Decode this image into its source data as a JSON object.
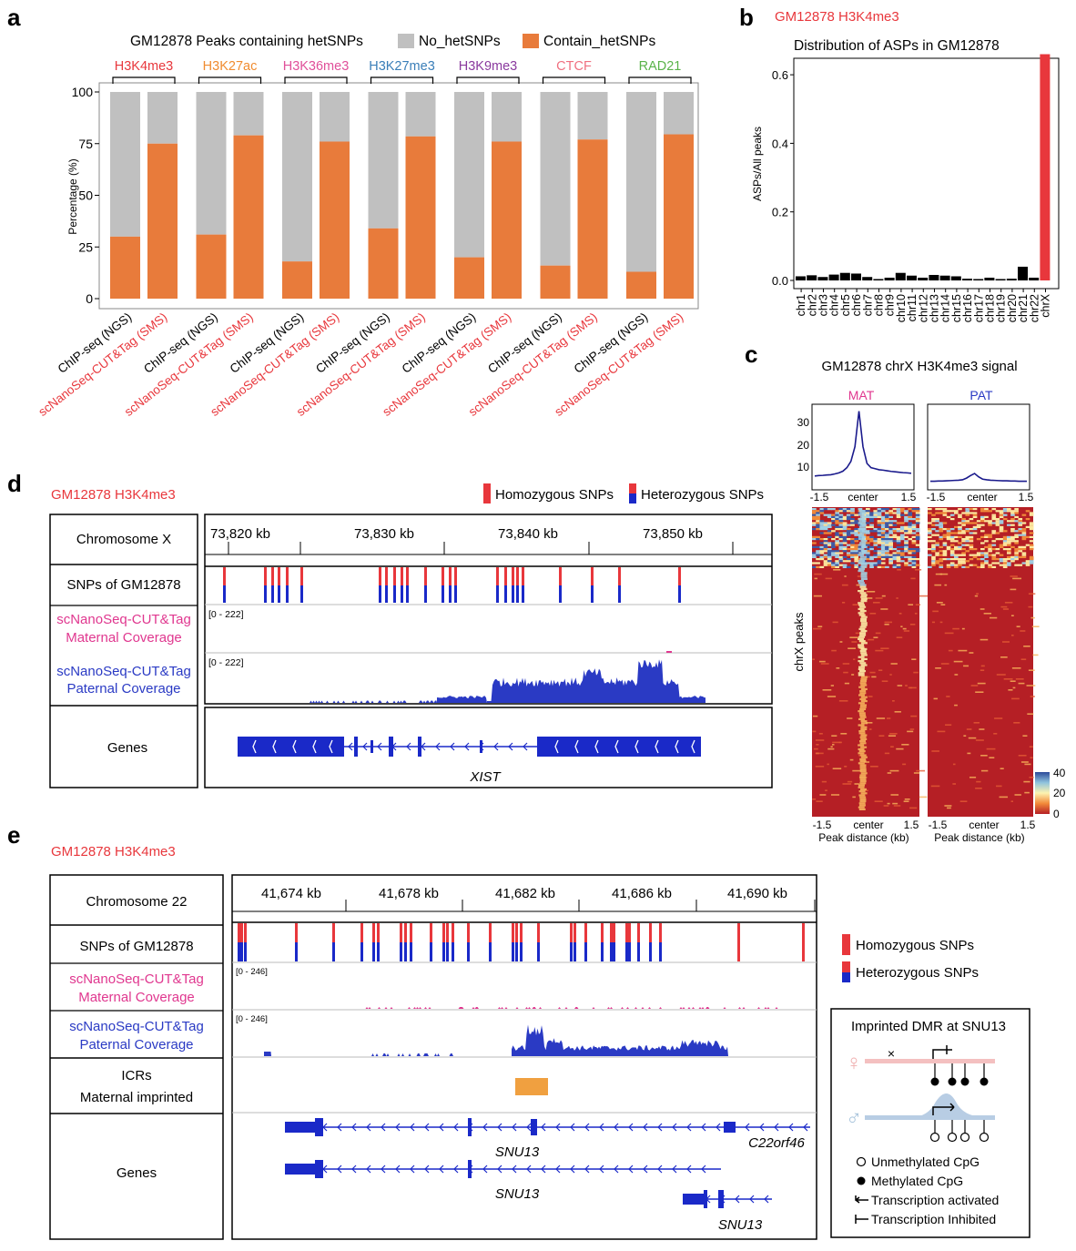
{
  "panel_labels": {
    "a": "a",
    "b": "b",
    "c": "c",
    "d": "d",
    "e": "e"
  },
  "colors": {
    "orange": "#E87B3B",
    "gray": "#C0C0C0",
    "red": "#E8373C",
    "blue": "#1A29C8",
    "navy": "#1A1A8C",
    "pink": "#E0378F",
    "track_blue": "#2A3AC4",
    "icr": "#F0A040",
    "hom": "#E8373C",
    "het_top": "#E8373C",
    "het_bot": "#1A29C8"
  },
  "chart_data": [
    {
      "type": "bar",
      "id": "a",
      "title": "GM12878 Peaks containing hetSNPs",
      "legend": [
        "No_hetSNPs",
        "Contain_hetSNPs"
      ],
      "ylabel": "Percentage (%)",
      "ylim": [
        0,
        100
      ],
      "yticks": [
        "0",
        "25",
        "50",
        "75",
        "100"
      ],
      "groups": [
        {
          "name": "H3K4me3",
          "color": "#E8373C",
          "ngs": 30,
          "sms": 75
        },
        {
          "name": "H3K27ac",
          "color": "#F08C30",
          "ngs": 31,
          "sms": 79
        },
        {
          "name": "H3K36me3",
          "color": "#E0509A",
          "ngs": 18,
          "sms": 76
        },
        {
          "name": "H3K27me3",
          "color": "#3A7EB8",
          "ngs": 34,
          "sms": 78.5
        },
        {
          "name": "H3K9me3",
          "color": "#8A3A9E",
          "ngs": 20,
          "sms": 76
        },
        {
          "name": "CTCF",
          "color": "#F07080",
          "ngs": 16,
          "sms": 77
        },
        {
          "name": "RAD21",
          "color": "#5AB34A",
          "ngs": 13,
          "sms": 79.5
        }
      ],
      "xlabels": {
        "ngs": "ChIP-seq (NGS)",
        "sms": "scNanoSeq-CUT&Tag (SMS)"
      }
    },
    {
      "type": "bar",
      "id": "b",
      "header": "GM12878 H3K4me3",
      "title": "Distribution of ASPs in GM12878",
      "ylabel": "ASPs/All peaks",
      "ylim": [
        0,
        0.68
      ],
      "yticks": [
        "0.0",
        "0.2",
        "0.4",
        "0.6"
      ],
      "categories": [
        "chr1",
        "chr2",
        "chr3",
        "chr4",
        "chr5",
        "chr6",
        "chr7",
        "chr8",
        "chr9",
        "chr10",
        "chr11",
        "chr12",
        "chr13",
        "chr14",
        "chr15",
        "chr16",
        "chr17",
        "chr18",
        "chr19",
        "chr20",
        "chr21",
        "chr22",
        "chrX"
      ],
      "values": [
        0.012,
        0.015,
        0.01,
        0.017,
        0.022,
        0.02,
        0.01,
        0.004,
        0.008,
        0.022,
        0.014,
        0.008,
        0.016,
        0.014,
        0.012,
        0.005,
        0.004,
        0.008,
        0.004,
        0.005,
        0.04,
        0.008,
        0.66
      ]
    },
    {
      "type": "heatmap",
      "id": "c",
      "title": "GM12878 chrX H3K4me3 signal",
      "columns": [
        "MAT",
        "PAT"
      ],
      "profile_yticks": [
        "10",
        "20",
        "30"
      ],
      "profile_ylim": [
        0,
        37
      ],
      "xticks": [
        "-1.5",
        "center",
        "1.5"
      ],
      "xlabel": "Peak distance (kb)",
      "ylabel": "chrX peaks",
      "profile_mat": [
        4,
        4.2,
        4.3,
        4.5,
        4.6,
        5,
        5.5,
        6.3,
        8,
        11,
        18,
        35,
        18,
        10,
        8,
        7.5,
        7,
        6.8,
        6.5,
        6.2,
        6,
        5.8,
        5.6,
        5.5,
        5.3
      ],
      "profile_pat": [
        1.5,
        1.5,
        1.6,
        1.6,
        1.7,
        1.8,
        1.9,
        2,
        2.2,
        3,
        4.2,
        5.2,
        3.6,
        2.5,
        2.2,
        2,
        1.9,
        1.8,
        1.7,
        1.7,
        1.6,
        1.6,
        1.5,
        1.5,
        1.5
      ],
      "colorbar": {
        "max": "40",
        "mid": "20",
        "min": "0"
      }
    }
  ],
  "panel_d": {
    "header": "GM12878 H3K4me3",
    "legend": {
      "hom": "Homozygous SNPs",
      "het": "Heterozygous SNPs"
    },
    "tracks": {
      "chrom": "Chromosome X",
      "snps": "SNPs of GM12878",
      "mat1": "scNanoSeq-CUT&Tag",
      "mat2": "Maternal Coverage",
      "pat1": "scNanoSeq-CUT&Tag",
      "pat2": "Paternal Coverage",
      "genes": "Genes"
    },
    "ticks": [
      "73,820 kb",
      "73,830 kb",
      "73,840 kb",
      "73,850 kb"
    ],
    "range_mat": "[0 - 222]",
    "range_pat": "[0 - 222]",
    "gene": "XIST"
  },
  "panel_e": {
    "header": "GM12878 H3K4me3",
    "legend": {
      "hom": "Homozygous SNPs",
      "het": "Heterozygous SNPs"
    },
    "tracks": {
      "chrom": "Chromosome 22",
      "snps": "SNPs of GM12878",
      "mat1": "scNanoSeq-CUT&Tag",
      "mat2": "Maternal Coverage",
      "pat1": "scNanoSeq-CUT&Tag",
      "pat2": "Paternal Coverage",
      "icr1": "ICRs",
      "icr2": "Maternal imprinted",
      "genes": "Genes"
    },
    "ticks": [
      "41,674 kb",
      "41,678 kb",
      "41,682 kb",
      "41,686 kb",
      "41,690 kb"
    ],
    "range_mat": "[0 - 246]",
    "range_pat": "[0 - 246]",
    "gene1": "SNU13",
    "gene2": "C22orf46",
    "gene3": "SNU13",
    "gene4": "SNU13",
    "dmr": {
      "title": "Imprinted DMR at SNU13",
      "female": "♀",
      "male": "♂",
      "x_mark": "×",
      "leg_unmeth": "Unmethylated CpG",
      "leg_meth": "Methylated CpG",
      "leg_act": "Transcription activated",
      "leg_inh": "Transcription Inhibited"
    }
  }
}
